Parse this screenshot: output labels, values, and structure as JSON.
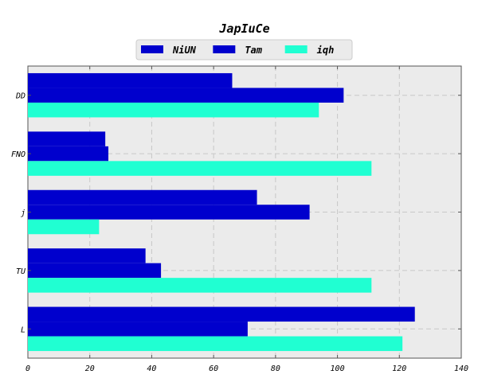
{
  "chart_data": {
    "type": "bar",
    "orientation": "horizontal",
    "title": "JapIuCe",
    "xlabel": "",
    "ylabel": "",
    "categories": [
      "DD",
      "FNO",
      "j",
      "TU",
      "L"
    ],
    "series": [
      {
        "name": "NiUN",
        "color": "#0000cd",
        "values": [
          66,
          25,
          74,
          38,
          125
        ]
      },
      {
        "name": "Tam",
        "color": "#0000cd",
        "values": [
          102,
          26,
          91,
          43,
          71
        ]
      },
      {
        "name": "iqh",
        "color": "#20ffd2",
        "values": [
          94,
          111,
          23,
          111,
          121
        ]
      }
    ],
    "xlim": [
      0,
      140
    ],
    "xticks": [
      0,
      20,
      40,
      60,
      80,
      100,
      120,
      140
    ],
    "grid": true,
    "legend_position": "top-center",
    "plot_background": "#ebebeb"
  }
}
